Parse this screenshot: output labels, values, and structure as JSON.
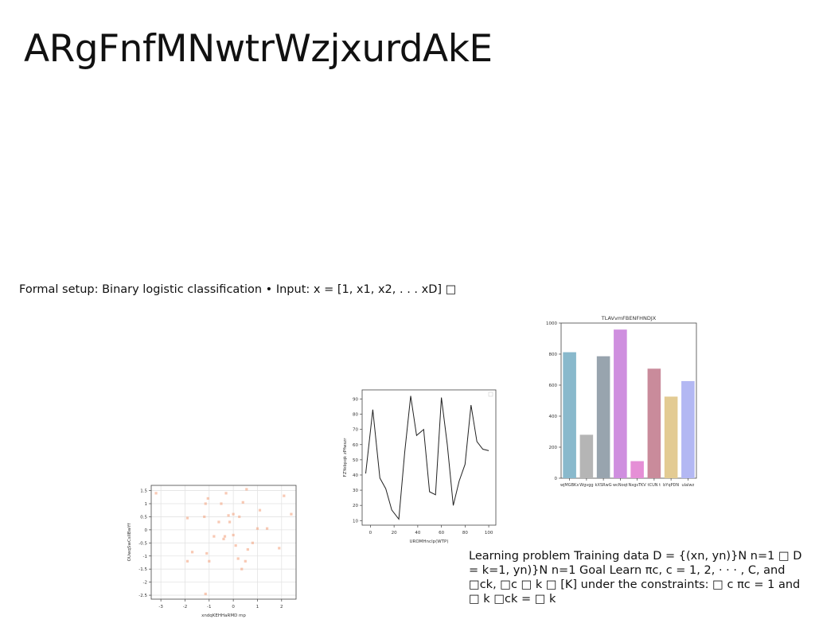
{
  "slide": {
    "title": "ARgFnfMNwtrWzjxurdAkE",
    "setup_text": "Formal setup: Binary logistic classification • Input: x = [1, x1, x2, . . . xD] □",
    "learning_text": "Learning problem Training data D = {(xn, yn)}N n=1 □ D = k=1, yn)}N n=1 Goal Learn πc, c = 1, 2, · · · , C, and □ck, □c □ k □ [K] under the constraints: □ c πc = 1 and □ k □ck = □ k"
  },
  "chart_data": [
    {
      "type": "scatter",
      "title": "",
      "xlabel": "xndqKEHHaRMD mp",
      "ylabel": "OUwqSwCsIIBwYf",
      "xlim": [
        -3.4,
        2.6
      ],
      "ylim": [
        -2.65,
        1.7
      ],
      "xticks": [
        -3,
        -2,
        -1,
        0,
        1,
        2
      ],
      "yticks": [
        -2.5,
        -2.0,
        -1.5,
        -1.0,
        -0.5,
        0.0,
        0.5,
        1.0,
        1.5
      ],
      "grid": true,
      "color": "#f4a582",
      "points": [
        [
          -3.2,
          1.4
        ],
        [
          -1.9,
          0.45
        ],
        [
          -1.9,
          -1.2
        ],
        [
          -1.7,
          -0.85
        ],
        [
          -1.2,
          0.5
        ],
        [
          -1.15,
          1.0
        ],
        [
          -1.1,
          -0.9
        ],
        [
          -1.05,
          1.2
        ],
        [
          -1.0,
          -1.2
        ],
        [
          -1.15,
          -2.45
        ],
        [
          -0.8,
          -0.25
        ],
        [
          -0.6,
          0.3
        ],
        [
          -0.5,
          1.0
        ],
        [
          -0.4,
          -0.35
        ],
        [
          -0.35,
          -0.25
        ],
        [
          -0.3,
          1.4
        ],
        [
          -0.2,
          0.55
        ],
        [
          -0.15,
          0.3
        ],
        [
          0.0,
          0.6
        ],
        [
          0.0,
          -0.2
        ],
        [
          0.1,
          -0.6
        ],
        [
          0.2,
          -1.1
        ],
        [
          0.25,
          0.5
        ],
        [
          0.35,
          -1.5
        ],
        [
          0.4,
          1.05
        ],
        [
          0.5,
          -1.2
        ],
        [
          0.55,
          1.55
        ],
        [
          0.6,
          -0.75
        ],
        [
          0.8,
          -0.5
        ],
        [
          1.0,
          0.05
        ],
        [
          1.1,
          0.75
        ],
        [
          1.4,
          0.05
        ],
        [
          1.9,
          -0.7
        ],
        [
          2.1,
          1.3
        ],
        [
          2.4,
          0.6
        ]
      ]
    },
    {
      "type": "line",
      "title": "",
      "xlabel": "UROMHnclp(WTP)",
      "ylabel": "FZYebpqk zPfwszr",
      "xlim": [
        -7,
        106
      ],
      "ylim": [
        7,
        96
      ],
      "xticks": [
        0,
        20,
        40,
        60,
        80,
        100
      ],
      "yticks": [
        10,
        20,
        30,
        40,
        50,
        60,
        70,
        80,
        90
      ],
      "grid": false,
      "legend": "top-right",
      "color": "#222222",
      "x": [
        -4,
        2,
        8,
        13,
        18,
        24,
        29,
        34,
        39,
        45,
        50,
        55,
        60,
        65,
        70,
        75,
        80,
        85,
        90,
        95,
        100
      ],
      "y": [
        41,
        83,
        38,
        31,
        17,
        11,
        55,
        92,
        66,
        70,
        29,
        27,
        91,
        60,
        20,
        36,
        47,
        86,
        62,
        57,
        56
      ]
    },
    {
      "type": "bar",
      "title": "TLAVvmFBENFHNDJX",
      "xlabel": "",
      "ylabel": "",
      "ylim": [
        0,
        1000
      ],
      "yticks": [
        0,
        200,
        400,
        600,
        800,
        1000
      ],
      "categories": [
        "wjMGBKx",
        "Wgvgg",
        "kXSRwG",
        "wcNoqt",
        "NxgsTKV",
        "tCUN t",
        "bYqPDN",
        "ulalwz"
      ],
      "values": [
        812,
        280,
        786,
        958,
        110,
        706,
        526,
        626
      ],
      "colors": [
        "#89b9cc",
        "#b5b5b5",
        "#98a4ae",
        "#cf8fdf",
        "#e58fd6",
        "#c98b9b",
        "#e3cb93",
        "#b3b8f3"
      ]
    }
  ]
}
